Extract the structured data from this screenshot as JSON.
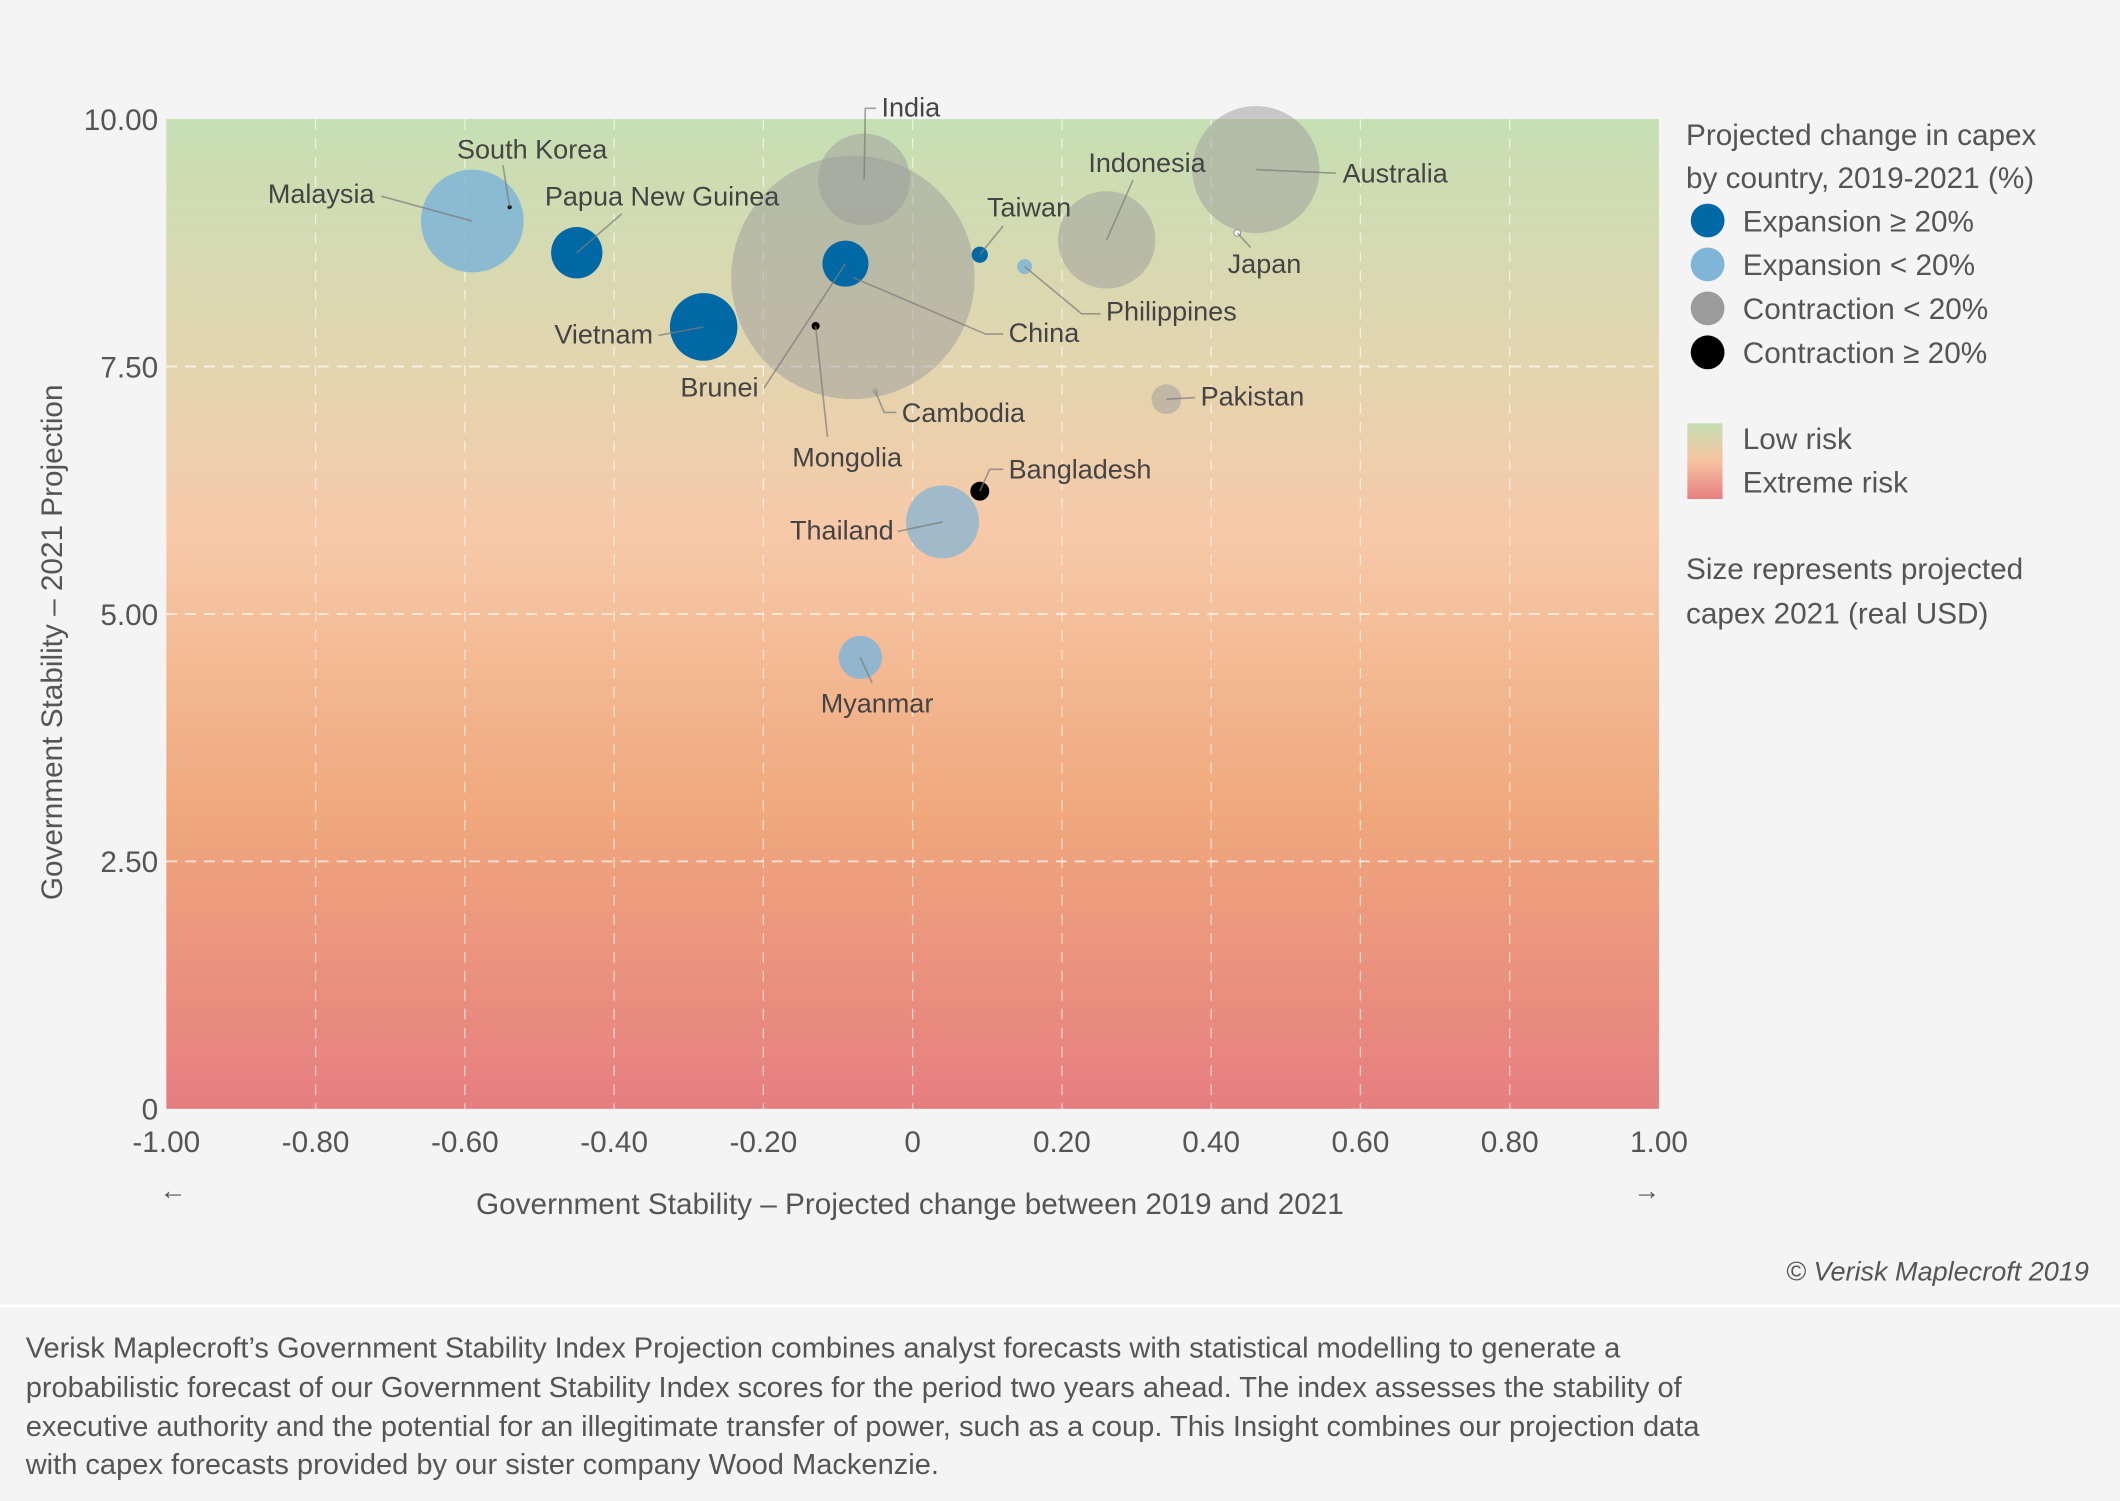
{
  "chart_data": {
    "type": "scatter",
    "subtype": "bubble",
    "xlabel": "Government Stability – Projected change between 2019 and 2021",
    "ylabel": "Government Stability – 2021 Projection",
    "xlim": [
      -1.0,
      1.0
    ],
    "ylim": [
      0,
      10
    ],
    "x_ticks": [
      "-1.00",
      "-0.80",
      "-0.60",
      "-0.40",
      "-0.20",
      "0",
      "0.20",
      "0.40",
      "0.60",
      "0.80",
      "1.00"
    ],
    "y_ticks": [
      "0",
      "2.50",
      "5.00",
      "7.50",
      "10.00"
    ],
    "x_arrow_left": "←",
    "x_arrow_right": "→",
    "grid": true,
    "background": {
      "top_label": "Low risk",
      "bottom_label": "Extreme risk",
      "top_color": "#c6dfb3",
      "bottom_color": "#e67e80"
    },
    "legend": {
      "position": "right",
      "title": "Projected change in capex by country, 2019-2021 (%)",
      "title_line1": "Projected change in capex",
      "title_line2": "by country, 2019-2021 (%)",
      "categories": [
        {
          "key": "exp_hi",
          "label": "Expansion ≥ 20%",
          "color": "#0068a5"
        },
        {
          "key": "exp_lo",
          "label": "Expansion < 20%",
          "color": "#7fb5d7"
        },
        {
          "key": "con_lo",
          "label": "Contraction < 20%",
          "color": "#9b9b9b"
        },
        {
          "key": "con_hi",
          "label": "Contraction ≥ 20%",
          "color": "#000000"
        }
      ],
      "scale_low": "Low risk",
      "scale_high": "Extreme risk",
      "size_note_line1": "Size represents projected",
      "size_note_line2": "capex 2021 (real USD)"
    },
    "points": [
      {
        "name": "Malaysia",
        "x": -0.59,
        "y": 8.97,
        "category": "exp_lo",
        "size": 38
      },
      {
        "name": "South Korea",
        "x": -0.54,
        "y": 9.11,
        "category": "con_hi",
        "size": 1.5
      },
      {
        "name": "Papua New Guinea",
        "x": -0.45,
        "y": 8.65,
        "category": "exp_hi",
        "size": 19
      },
      {
        "name": "Vietnam",
        "x": -0.28,
        "y": 7.9,
        "category": "exp_hi",
        "size": 25
      },
      {
        "name": "China",
        "x": -0.08,
        "y": 8.4,
        "category": "con_lo",
        "size": 90
      },
      {
        "name": "India",
        "x": -0.065,
        "y": 9.39,
        "category": "con_lo",
        "size": 34
      },
      {
        "name": "Brunei",
        "x": -0.09,
        "y": 8.54,
        "category": "exp_hi",
        "size": 17
      },
      {
        "name": "Mongolia",
        "x": -0.13,
        "y": 7.91,
        "category": "con_hi",
        "size": 3
      },
      {
        "name": "Cambodia",
        "x": -0.05,
        "y": 7.25,
        "category": "con_lo",
        "size": 2.5
      },
      {
        "name": "Taiwan",
        "x": 0.09,
        "y": 8.63,
        "category": "exp_hi",
        "size": 6
      },
      {
        "name": "Philippines",
        "x": 0.15,
        "y": 8.51,
        "category": "exp_lo",
        "size": 5.5
      },
      {
        "name": "Indonesia",
        "x": 0.26,
        "y": 8.78,
        "category": "con_lo",
        "size": 36
      },
      {
        "name": "Australia",
        "x": 0.46,
        "y": 9.49,
        "category": "con_lo",
        "size": 47
      },
      {
        "name": "Japan",
        "x": 0.435,
        "y": 8.85,
        "category": "con_lo",
        "size": 2.5
      },
      {
        "name": "Pakistan",
        "x": 0.34,
        "y": 7.17,
        "category": "con_lo",
        "size": 11
      },
      {
        "name": "Bangladesh",
        "x": 0.09,
        "y": 6.24,
        "category": "con_hi",
        "size": 7
      },
      {
        "name": "Thailand",
        "x": 0.04,
        "y": 5.93,
        "category": "exp_lo",
        "size": 27
      },
      {
        "name": "Myanmar",
        "x": -0.07,
        "y": 4.56,
        "category": "exp_lo",
        "size": 16
      }
    ],
    "copyright": "© Verisk Maplecroft 2019"
  },
  "footer": {
    "lines": [
      "Verisk Maplecroft’s Government Stability Index Projection combines analyst forecasts with statistical modelling to generate a",
      "probabilistic forecast of our Government Stability Index scores for the period two years ahead. The index assesses the stability of",
      "executive authority and the potential for an illegitimate transfer of power, such as a coup. This Insight combines our projection data",
      "with capex forecasts provided by our sister company Wood Mackenzie."
    ]
  }
}
